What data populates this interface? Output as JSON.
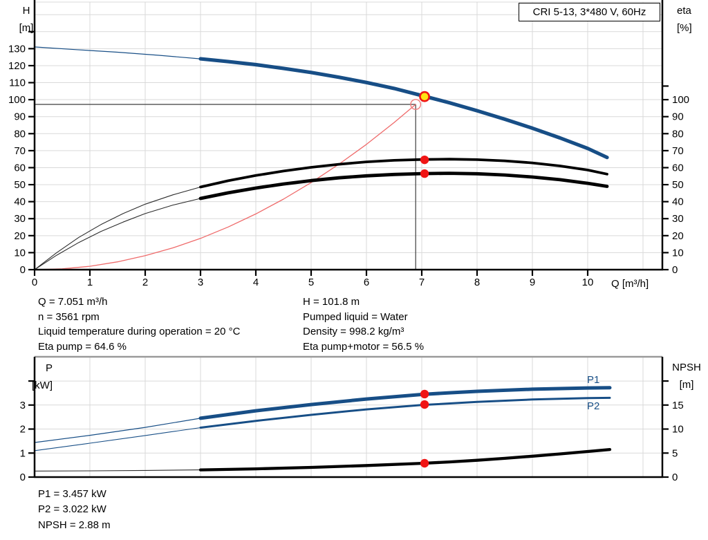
{
  "title_box": "CRI 5-13, 3*480 V, 60Hz",
  "captions": {
    "top_left": [
      "H",
      "[m]"
    ],
    "top_right": [
      "eta",
      "[%]"
    ],
    "x": "Q [m³/h]",
    "bottom_left": [
      "P",
      "[kW]"
    ],
    "bottom_right": [
      "NPSH",
      "[m]"
    ]
  },
  "curve_labels": {
    "p1": "P1",
    "p2": "P2"
  },
  "info_top_left": [
    "Q = 7.051 m³/h",
    "n = 3561 rpm",
    "Liquid temperature during operation = 20 °C",
    "Eta pump = 64.6 %"
  ],
  "info_top_right": [
    "H = 101.8 m",
    "Pumped liquid = Water",
    "Density = 998.2 kg/m³",
    "Eta pump+motor = 56.5 %"
  ],
  "info_bottom": [
    "P1 = 3.457 kW",
    "P2 = 3.022 kW",
    "NPSH = 2.88 m"
  ],
  "colors": {
    "curve_blue": "#174e86",
    "curve_black": "#000000",
    "thin_gray": "#2b2b2b",
    "system_red": "#ef6a6a",
    "open_ring_red": "#f17a7a",
    "marker_red": "#f01414",
    "marker_yellow": "#ffe312",
    "grid": "#d9d9d9",
    "axis": "#000000",
    "guide": "#3c3c3c",
    "bottom_top_border": "#9a9a9a",
    "label_blue": "#174e86"
  },
  "chart_data": [
    {
      "name": "qh-eta-chart",
      "type": "line",
      "title": "CRI 5-13, 3*480 V, 60Hz",
      "xlabel": "Q [m³/h]",
      "axes": {
        "x": {
          "lim": [
            0,
            11.35
          ],
          "ticks": [
            0,
            1,
            2,
            3,
            4,
            5,
            6,
            7,
            8,
            9,
            10
          ],
          "gridlines": [
            1,
            2,
            3,
            4,
            5,
            6,
            7,
            8,
            9,
            10,
            11
          ]
        },
        "left": {
          "label": "H [m]",
          "lim": [
            0,
            157.4
          ],
          "ticks": [
            0,
            10,
            20,
            30,
            40,
            50,
            60,
            70,
            80,
            90,
            100,
            110,
            120,
            130
          ],
          "unlabeled_ticks": [
            140
          ],
          "gridlines": [
            10,
            20,
            30,
            40,
            50,
            60,
            70,
            80,
            90,
            100,
            110,
            120,
            130,
            140,
            150
          ]
        },
        "right": {
          "label": "eta [%]",
          "lim": [
            0,
            157.4
          ],
          "ticks": [
            0,
            10,
            20,
            30,
            40,
            50,
            60,
            70,
            80,
            90,
            100
          ],
          "unlabeled_ticks": [
            108
          ]
        }
      },
      "series": [
        {
          "name": "head-curve-reserve",
          "axis": "left",
          "color_key": "curve_blue",
          "width": 1.2,
          "points": [
            [
              0,
              131
            ],
            [
              0.75,
              129.4
            ],
            [
              1.5,
              127.9
            ],
            [
              2.25,
              126.1
            ],
            [
              3,
              124
            ]
          ]
        },
        {
          "name": "head-curve",
          "axis": "left",
          "color_key": "curve_blue",
          "width": 5.2,
          "points": [
            [
              3,
              124
            ],
            [
              3.5,
              122.4
            ],
            [
              4,
              120.6
            ],
            [
              4.5,
              118.4
            ],
            [
              5,
              116
            ],
            [
              5.5,
              113.2
            ],
            [
              6,
              110.1
            ],
            [
              6.5,
              106.6
            ],
            [
              7,
              102.4
            ],
            [
              7.5,
              98.2
            ],
            [
              8,
              93.5
            ],
            [
              8.5,
              88.5
            ],
            [
              9,
              83.2
            ],
            [
              9.5,
              77.5
            ],
            [
              10,
              71.3
            ],
            [
              10.35,
              66
            ]
          ]
        },
        {
          "name": "system-curve",
          "axis": "left",
          "color_key": "system_red",
          "width": 1.3,
          "points": [
            [
              0,
              0
            ],
            [
              0.5,
              0.5
            ],
            [
              1,
              2
            ],
            [
              1.5,
              4.6
            ],
            [
              2,
              8.2
            ],
            [
              2.5,
              12.8
            ],
            [
              3,
              18.4
            ],
            [
              3.5,
              25.1
            ],
            [
              4,
              32.8
            ],
            [
              4.5,
              41.5
            ],
            [
              5,
              51.2
            ],
            [
              5.5,
              62
            ],
            [
              6,
              73.7
            ],
            [
              6.5,
              86.5
            ],
            [
              6.89,
              97.2
            ]
          ]
        },
        {
          "name": "eta-pump-reserve",
          "axis": "right",
          "color_key": "thin_gray",
          "width": 1.1,
          "points": [
            [
              0,
              0
            ],
            [
              0.4,
              10
            ],
            [
              0.8,
              19
            ],
            [
              1.2,
              26.5
            ],
            [
              1.6,
              33
            ],
            [
              2,
              38.5
            ],
            [
              2.5,
              44
            ],
            [
              3,
              48.6
            ]
          ]
        },
        {
          "name": "eta-pump-curve",
          "axis": "right",
          "color_key": "curve_black",
          "width": 3.8,
          "points": [
            [
              3,
              48.6
            ],
            [
              3.5,
              52.3
            ],
            [
              4,
              55.4
            ],
            [
              4.5,
              58
            ],
            [
              5,
              60.2
            ],
            [
              5.5,
              62
            ],
            [
              6,
              63.4
            ],
            [
              6.5,
              64.3
            ],
            [
              7,
              64.8
            ],
            [
              7.5,
              65
            ],
            [
              8,
              64.7
            ],
            [
              8.5,
              64
            ],
            [
              9,
              62.8
            ],
            [
              9.5,
              61
            ],
            [
              10,
              58.6
            ],
            [
              10.35,
              56.2
            ]
          ]
        },
        {
          "name": "eta-pump-motor-reserve",
          "axis": "right",
          "color_key": "thin_gray",
          "width": 1.1,
          "points": [
            [
              0,
              0
            ],
            [
              0.4,
              8.5
            ],
            [
              0.8,
              16
            ],
            [
              1.2,
              22.5
            ],
            [
              1.6,
              28
            ],
            [
              2,
              33
            ],
            [
              2.5,
              38
            ],
            [
              3,
              41.9
            ]
          ]
        },
        {
          "name": "eta-pump-motor-curve",
          "axis": "right",
          "color_key": "curve_black",
          "width": 4.8,
          "points": [
            [
              3,
              41.9
            ],
            [
              3.5,
              45.2
            ],
            [
              4,
              48
            ],
            [
              4.5,
              50.4
            ],
            [
              5,
              52.4
            ],
            [
              5.5,
              54
            ],
            [
              6,
              55.2
            ],
            [
              6.5,
              56
            ],
            [
              7,
              56.5
            ],
            [
              7.5,
              56.7
            ],
            [
              8,
              56.4
            ],
            [
              8.5,
              55.7
            ],
            [
              9,
              54.5
            ],
            [
              9.5,
              52.9
            ],
            [
              10,
              50.8
            ],
            [
              10.35,
              49
            ]
          ]
        }
      ],
      "guides": {
        "duty_q": 6.89,
        "duty_h": 97.2
      },
      "markers": [
        {
          "name": "duty-point-marker",
          "style": "open",
          "axis": "left",
          "x": 6.89,
          "y": 97.2
        },
        {
          "name": "operating-point-marker",
          "style": "yellow",
          "axis": "left",
          "x": 7.051,
          "y": 101.8
        },
        {
          "name": "eta-pump-marker",
          "style": "red",
          "axis": "right",
          "x": 7.051,
          "y": 64.6
        },
        {
          "name": "eta-pump-motor-marker",
          "style": "red",
          "axis": "right",
          "x": 7.051,
          "y": 56.5
        }
      ]
    },
    {
      "name": "power-npsh-chart",
      "type": "line",
      "xlabel": "",
      "axes": {
        "x": {
          "lim": [
            0,
            11.35
          ],
          "ticks": [],
          "gridlines": [
            1,
            2,
            3,
            4,
            5,
            6,
            7,
            8,
            9,
            10,
            11
          ]
        },
        "left": {
          "label": "P [kW]",
          "lim": [
            0,
            5.01
          ],
          "ticks": [
            0,
            1,
            2,
            3
          ],
          "unlabeled_ticks": [
            4
          ],
          "gridlines": [
            1,
            2,
            3,
            4
          ]
        },
        "right": {
          "label": "NPSH [m]",
          "lim": [
            0,
            25.05
          ],
          "ticks": [
            0,
            5,
            10,
            15
          ],
          "unlabeled_ticks": [
            20
          ]
        }
      },
      "series": [
        {
          "name": "p1-curve-reserve",
          "axis": "left",
          "color_key": "curve_blue",
          "width": 1.2,
          "points": [
            [
              0,
              1.44
            ],
            [
              1,
              1.74
            ],
            [
              2,
              2.07
            ],
            [
              3,
              2.45
            ]
          ]
        },
        {
          "name": "p1-curve",
          "axis": "left",
          "color_key": "curve_blue",
          "width": 5,
          "points": [
            [
              3,
              2.45
            ],
            [
              4,
              2.76
            ],
            [
              5,
              3.02
            ],
            [
              6,
              3.25
            ],
            [
              7,
              3.44
            ],
            [
              7.5,
              3.51
            ],
            [
              8,
              3.57
            ],
            [
              9,
              3.66
            ],
            [
              10,
              3.71
            ],
            [
              10.4,
              3.72
            ]
          ]
        },
        {
          "name": "p2-curve-reserve",
          "axis": "left",
          "color_key": "curve_blue",
          "width": 1.1,
          "points": [
            [
              0,
              1.1
            ],
            [
              1,
              1.41
            ],
            [
              2,
              1.73
            ],
            [
              3,
              2.06
            ]
          ]
        },
        {
          "name": "p2-curve",
          "axis": "left",
          "color_key": "curve_blue",
          "width": 3,
          "points": [
            [
              3,
              2.06
            ],
            [
              4,
              2.34
            ],
            [
              5,
              2.59
            ],
            [
              6,
              2.82
            ],
            [
              7,
              3.0
            ],
            [
              8,
              3.13
            ],
            [
              9,
              3.23
            ],
            [
              10,
              3.29
            ],
            [
              10.4,
              3.3
            ]
          ]
        },
        {
          "name": "npsh-curve-reserve",
          "axis": "right",
          "color_key": "thin_gray",
          "width": 1.1,
          "points": [
            [
              0,
              1.25
            ],
            [
              1,
              1.3
            ],
            [
              2,
              1.38
            ],
            [
              3,
              1.5
            ]
          ]
        },
        {
          "name": "npsh-curve",
          "axis": "right",
          "color_key": "curve_black",
          "width": 4.3,
          "points": [
            [
              3,
              1.5
            ],
            [
              4,
              1.72
            ],
            [
              5,
              2.02
            ],
            [
              6,
              2.4
            ],
            [
              7,
              2.87
            ],
            [
              7.5,
              3.15
            ],
            [
              8,
              3.5
            ],
            [
              8.5,
              3.9
            ],
            [
              9,
              4.35
            ],
            [
              9.5,
              4.82
            ],
            [
              10,
              5.32
            ],
            [
              10.4,
              5.75
            ]
          ]
        }
      ],
      "markers": [
        {
          "name": "p1-marker",
          "style": "red",
          "axis": "left",
          "x": 7.051,
          "y": 3.457
        },
        {
          "name": "p2-marker",
          "style": "red",
          "axis": "left",
          "x": 7.051,
          "y": 3.022
        },
        {
          "name": "npsh-marker",
          "style": "red",
          "axis": "right",
          "x": 7.051,
          "y": 2.88
        }
      ]
    }
  ]
}
